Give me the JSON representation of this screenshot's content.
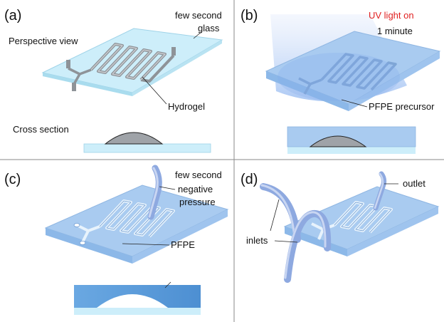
{
  "panels": [
    {
      "id": "a",
      "tag": "(a)",
      "texts": [
        "few second",
        "glass",
        "Perspective view",
        "Hydrogel",
        "Cross section"
      ]
    },
    {
      "id": "b",
      "tag": "(b)",
      "texts": [
        "UV light on",
        "1 minute",
        "PFPE precursor"
      ]
    },
    {
      "id": "c",
      "tag": "(c)",
      "texts": [
        "few second",
        "negative",
        "pressure",
        "PFPE"
      ]
    },
    {
      "id": "d",
      "tag": "(d)",
      "texts": [
        "outlet",
        "inlets"
      ]
    }
  ],
  "colors": {
    "glass_top": "#cdeefa",
    "glass_side": "#a9dcee",
    "hydrogel": "#9fa3a8",
    "pfpe": "#5a9ad6",
    "uv_text": "#e02020",
    "divider": "#8a8a8a"
  }
}
